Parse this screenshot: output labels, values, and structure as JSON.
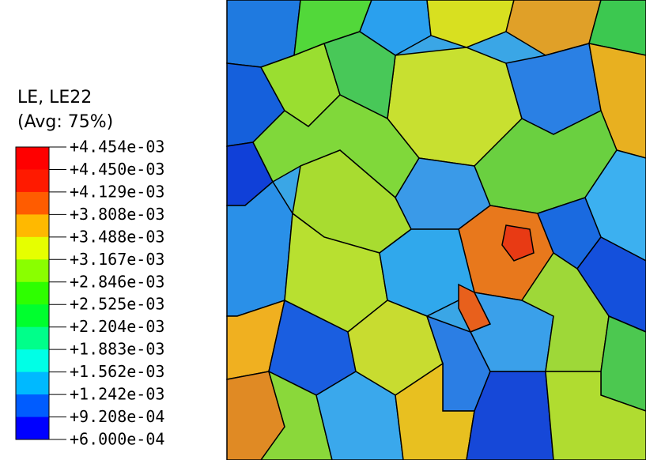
{
  "legend": {
    "title": "LE, LE22",
    "subtitle": "(Avg: 75%)",
    "labels": [
      "+4.454e-03",
      "+4.450e-03",
      "+4.129e-03",
      "+3.808e-03",
      "+3.488e-03",
      "+3.167e-03",
      "+2.846e-03",
      "+2.525e-03",
      "+2.204e-03",
      "+1.883e-03",
      "+1.562e-03",
      "+1.242e-03",
      "+9.208e-04",
      "+6.000e-04"
    ],
    "band_colors": [
      "#ff0000",
      "#ff1a00",
      "#ff5c00",
      "#ffb900",
      "#e6ff00",
      "#8aff00",
      "#2eff00",
      "#00ff2e",
      "#00ff8a",
      "#00ffe6",
      "#00b9ff",
      "#005cff",
      "#0000ff"
    ]
  }
}
